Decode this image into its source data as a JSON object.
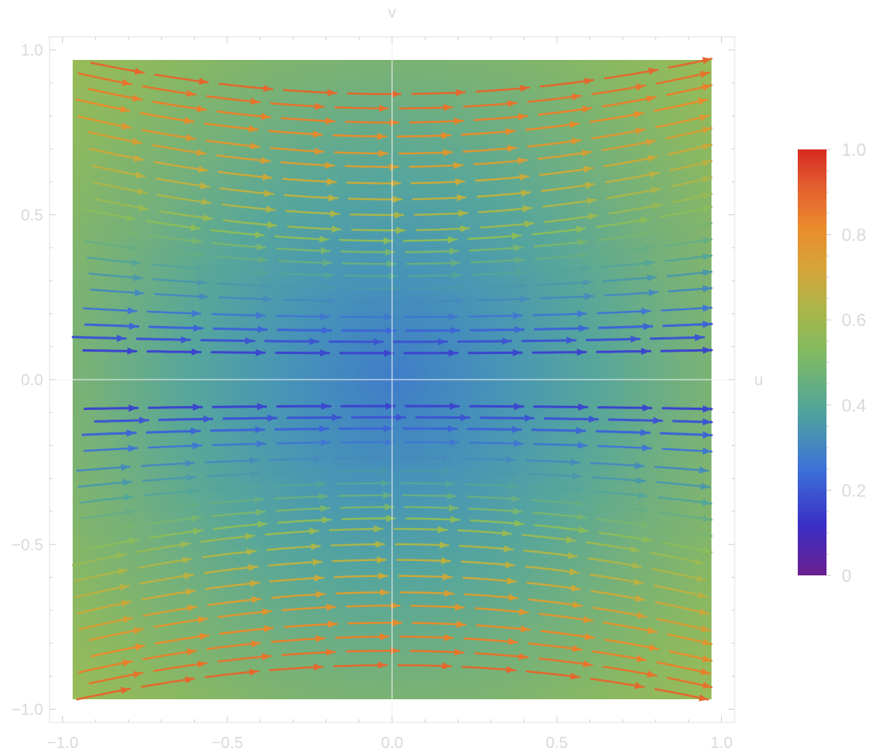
{
  "chart_data": {
    "type": "stream-density",
    "title": "",
    "xlabel": "u",
    "ylabel": "v",
    "xlim": [
      -1.04,
      1.04
    ],
    "ylim": [
      -1.04,
      1.04
    ],
    "x_ticks": [
      -1.0,
      -0.5,
      0.0,
      0.5,
      1.0
    ],
    "x_tick_labels": [
      "−1.0",
      "−0.5",
      "0.0",
      "0.5",
      "1.0"
    ],
    "y_ticks": [
      -1.0,
      -0.5,
      0.0,
      0.5,
      1.0
    ],
    "y_tick_labels": [
      "−1.0",
      "−0.5",
      "0.0",
      "0.5",
      "1.0"
    ],
    "grid": false,
    "axes_through_origin": true,
    "stream_levels": [
      -0.98,
      -0.94,
      -0.9,
      -0.86,
      -0.81,
      -0.77,
      -0.72,
      -0.67,
      -0.62,
      -0.57,
      -0.53,
      -0.48,
      -0.43,
      -0.38,
      -0.33,
      -0.28,
      -0.22,
      -0.17,
      -0.13,
      -0.09,
      0.09,
      0.13,
      0.17,
      0.22,
      0.28,
      0.33,
      0.38,
      0.43,
      0.48,
      0.53,
      0.57,
      0.62,
      0.67,
      0.72,
      0.77,
      0.81,
      0.86,
      0.9,
      0.94,
      0.98
    ],
    "stream_direction": "left-to-right",
    "color_function": "rainbow",
    "legend": {
      "placement": "right",
      "min": 0,
      "max": 1,
      "tick_values": [
        0,
        0.2,
        0.4,
        0.6,
        0.8,
        1.0
      ],
      "tick_labels": [
        "0",
        "0.2",
        "0.4",
        "0.6",
        "0.8",
        "1.0"
      ],
      "colors": [
        "#6b1f8f",
        "#3a2fc7",
        "#3d72d8",
        "#4fa39e",
        "#8bbd5a",
        "#c6ad3d",
        "#e98a2a",
        "#e2562f",
        "#d62a22"
      ]
    }
  }
}
